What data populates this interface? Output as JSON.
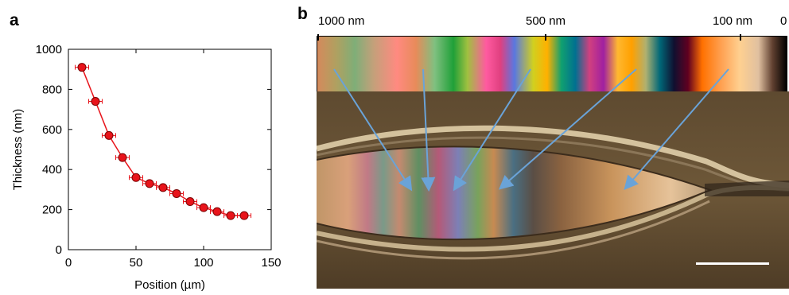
{
  "panel_a": {
    "letter": "a",
    "chart_data": {
      "type": "scatter",
      "x": [
        10,
        20,
        30,
        40,
        50,
        60,
        70,
        80,
        90,
        100,
        110,
        120,
        130
      ],
      "y": [
        910,
        740,
        570,
        460,
        360,
        330,
        310,
        280,
        240,
        210,
        190,
        170,
        170
      ],
      "x_error": 5,
      "xlabel": "Position (µm)",
      "ylabel": "Thickness (nm)",
      "xlim": [
        0,
        150
      ],
      "ylim": [
        0,
        1000
      ],
      "xticks": [
        0,
        50,
        100,
        150
      ],
      "yticks": [
        0,
        200,
        400,
        600,
        800,
        1000
      ],
      "grid": false,
      "marker_color": "#e8141b",
      "line_color": "#e8141b"
    }
  },
  "panel_b": {
    "letter": "b",
    "colorbar_labels": [
      "1000 nm",
      "500 nm",
      "100 nm",
      "0"
    ],
    "arrow_color": "#6aa3d8",
    "scale_bar_color": "#ffffff"
  }
}
